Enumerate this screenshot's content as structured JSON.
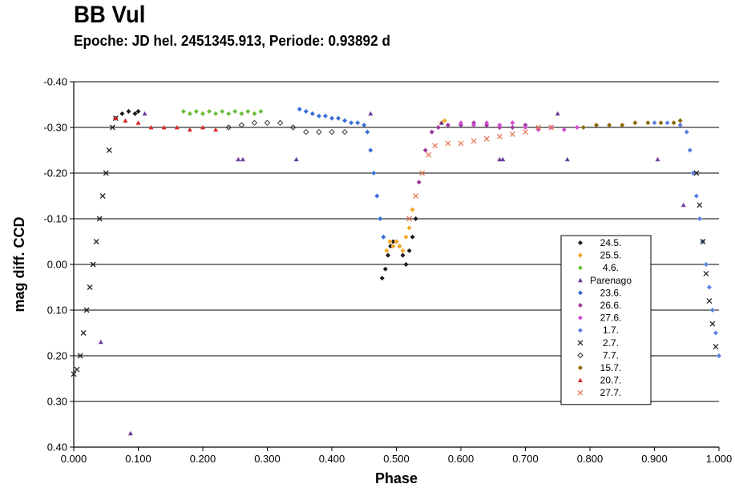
{
  "title": "BB Vul",
  "subtitle": "Epoche: JD hel. 2451345.913, Periode: 0.93892 d",
  "chart_data": {
    "type": "scatter",
    "title": "BB Vul",
    "subtitle": "Epoche: JD hel. 2451345.913, Periode: 0.93892 d",
    "xlabel": "Phase",
    "ylabel": "mag diff. CCD",
    "xlim": [
      0.0,
      1.0
    ],
    "ylim": [
      -0.4,
      0.4
    ],
    "y_inverted": true,
    "grid": "horizontal",
    "legend_position": "bottom-right",
    "x_ticks": [
      "0.000",
      "0.100",
      "0.200",
      "0.300",
      "0.400",
      "0.500",
      "0.600",
      "0.700",
      "0.800",
      "0.900",
      "1.000"
    ],
    "x_tick_values": [
      0,
      0.1,
      0.2,
      0.3,
      0.4,
      0.5,
      0.6,
      0.7,
      0.8,
      0.9,
      1.0
    ],
    "y_ticks": [
      "-0.40",
      "-0.30",
      "-0.20",
      "-0.10",
      "0.00",
      "0.10",
      "0.20",
      "0.30",
      "0.40"
    ],
    "y_tick_values": [
      -0.4,
      -0.3,
      -0.2,
      -0.1,
      0,
      0.1,
      0.2,
      0.3,
      0.4
    ],
    "series": [
      {
        "name": "24.5.",
        "color": "#1a1a1a",
        "marker": "diamond",
        "points": [
          [
            0.478,
            0.03
          ],
          [
            0.483,
            0.01
          ],
          [
            0.487,
            -0.02
          ],
          [
            0.491,
            -0.04
          ],
          [
            0.495,
            -0.05
          ],
          [
            0.5,
            -0.05
          ],
          [
            0.505,
            -0.04
          ],
          [
            0.51,
            -0.02
          ],
          [
            0.515,
            0.0
          ],
          [
            0.52,
            -0.03
          ],
          [
            0.525,
            -0.06
          ],
          [
            0.53,
            -0.1
          ],
          [
            0.065,
            -0.32
          ],
          [
            0.075,
            -0.33
          ],
          [
            0.085,
            -0.335
          ],
          [
            0.095,
            -0.33
          ],
          [
            0.1,
            -0.335
          ]
        ]
      },
      {
        "name": "25.5.",
        "color": "#f5a623",
        "marker": "diamond",
        "points": [
          [
            0.485,
            -0.03
          ],
          [
            0.49,
            -0.05
          ],
          [
            0.495,
            -0.04
          ],
          [
            0.5,
            -0.05
          ],
          [
            0.505,
            -0.04
          ],
          [
            0.51,
            -0.03
          ],
          [
            0.515,
            -0.06
          ],
          [
            0.52,
            -0.08
          ],
          [
            0.525,
            -0.12
          ],
          [
            0.57,
            -0.31
          ],
          [
            0.575,
            -0.315
          ]
        ]
      },
      {
        "name": "4.6.",
        "color": "#6cbf3b",
        "marker": "diamond",
        "points": [
          [
            0.17,
            -0.335
          ],
          [
            0.18,
            -0.33
          ],
          [
            0.19,
            -0.335
          ],
          [
            0.2,
            -0.33
          ],
          [
            0.21,
            -0.335
          ],
          [
            0.22,
            -0.33
          ],
          [
            0.23,
            -0.335
          ],
          [
            0.24,
            -0.33
          ],
          [
            0.25,
            -0.335
          ],
          [
            0.26,
            -0.33
          ],
          [
            0.27,
            -0.335
          ],
          [
            0.28,
            -0.33
          ],
          [
            0.29,
            -0.335
          ]
        ]
      },
      {
        "name": "Parenago",
        "color": "#6a3d9a",
        "marker": "triangle",
        "points": [
          [
            0.088,
            0.37
          ],
          [
            0.042,
            0.17
          ],
          [
            0.11,
            -0.33
          ],
          [
            0.255,
            -0.23
          ],
          [
            0.262,
            -0.23
          ],
          [
            0.345,
            -0.23
          ],
          [
            0.46,
            -0.33
          ],
          [
            0.66,
            -0.23
          ],
          [
            0.665,
            -0.23
          ],
          [
            0.75,
            -0.33
          ],
          [
            0.765,
            -0.23
          ],
          [
            0.905,
            -0.23
          ],
          [
            0.945,
            -0.13
          ],
          [
            0.57,
            -0.31
          ]
        ]
      },
      {
        "name": "23.6.",
        "color": "#3b6fd4",
        "marker": "diamond",
        "points": [
          [
            0.35,
            -0.34
          ],
          [
            0.36,
            -0.335
          ],
          [
            0.37,
            -0.33
          ],
          [
            0.38,
            -0.325
          ],
          [
            0.39,
            -0.325
          ],
          [
            0.4,
            -0.32
          ],
          [
            0.41,
            -0.32
          ],
          [
            0.42,
            -0.315
          ],
          [
            0.43,
            -0.31
          ],
          [
            0.44,
            -0.31
          ],
          [
            0.45,
            -0.305
          ],
          [
            0.455,
            -0.29
          ],
          [
            0.46,
            -0.25
          ],
          [
            0.465,
            -0.2
          ],
          [
            0.47,
            -0.15
          ],
          [
            0.475,
            -0.1
          ],
          [
            0.48,
            -0.06
          ]
        ]
      },
      {
        "name": "26.6.",
        "color": "#a0359e",
        "marker": "diamond",
        "points": [
          [
            0.535,
            -0.18
          ],
          [
            0.545,
            -0.25
          ],
          [
            0.555,
            -0.29
          ],
          [
            0.565,
            -0.3
          ],
          [
            0.58,
            -0.305
          ],
          [
            0.6,
            -0.305
          ],
          [
            0.62,
            -0.31
          ],
          [
            0.64,
            -0.305
          ],
          [
            0.66,
            -0.3
          ],
          [
            0.68,
            -0.3
          ],
          [
            0.7,
            -0.305
          ]
        ]
      },
      {
        "name": "27.6.",
        "color": "#d34fd1",
        "marker": "diamond",
        "points": [
          [
            0.6,
            -0.31
          ],
          [
            0.62,
            -0.305
          ],
          [
            0.64,
            -0.31
          ],
          [
            0.66,
            -0.305
          ],
          [
            0.68,
            -0.31
          ],
          [
            0.7,
            -0.3
          ],
          [
            0.72,
            -0.295
          ],
          [
            0.74,
            -0.3
          ],
          [
            0.76,
            -0.295
          ],
          [
            0.78,
            -0.3
          ]
        ]
      },
      {
        "name": "1.7.",
        "color": "#5a7fe0",
        "marker": "diamond",
        "points": [
          [
            0.9,
            -0.31
          ],
          [
            0.92,
            -0.31
          ],
          [
            0.94,
            -0.305
          ],
          [
            0.95,
            -0.29
          ],
          [
            0.955,
            -0.25
          ],
          [
            0.96,
            -0.2
          ],
          [
            0.965,
            -0.15
          ],
          [
            0.97,
            -0.1
          ],
          [
            0.975,
            -0.05
          ],
          [
            0.98,
            0.0
          ],
          [
            0.985,
            0.05
          ],
          [
            0.99,
            0.1
          ],
          [
            0.995,
            0.15
          ],
          [
            1.0,
            0.2
          ]
        ]
      },
      {
        "name": "2.7.",
        "color": "#222222",
        "marker": "x",
        "points": [
          [
            0.0,
            0.24
          ],
          [
            0.005,
            0.23
          ],
          [
            0.01,
            0.2
          ],
          [
            0.015,
            0.15
          ],
          [
            0.02,
            0.1
          ],
          [
            0.025,
            0.05
          ],
          [
            0.03,
            0.0
          ],
          [
            0.035,
            -0.05
          ],
          [
            0.04,
            -0.1
          ],
          [
            0.045,
            -0.15
          ],
          [
            0.05,
            -0.2
          ],
          [
            0.055,
            -0.25
          ],
          [
            0.06,
            -0.3
          ],
          [
            0.065,
            -0.32
          ],
          [
            0.965,
            -0.2
          ],
          [
            0.97,
            -0.13
          ],
          [
            0.975,
            -0.05
          ],
          [
            0.98,
            0.02
          ],
          [
            0.985,
            0.08
          ],
          [
            0.99,
            0.13
          ],
          [
            0.995,
            0.18
          ]
        ]
      },
      {
        "name": "7.7.",
        "color": "#333333",
        "marker": "diamond-open",
        "points": [
          [
            0.24,
            -0.3
          ],
          [
            0.26,
            -0.305
          ],
          [
            0.28,
            -0.31
          ],
          [
            0.3,
            -0.31
          ],
          [
            0.32,
            -0.31
          ],
          [
            0.34,
            -0.3
          ],
          [
            0.36,
            -0.29
          ],
          [
            0.38,
            -0.29
          ],
          [
            0.4,
            -0.29
          ],
          [
            0.42,
            -0.29
          ]
        ]
      },
      {
        "name": "15.7.",
        "color": "#8b6a00",
        "marker": "diamond",
        "points": [
          [
            0.79,
            -0.3
          ],
          [
            0.81,
            -0.305
          ],
          [
            0.83,
            -0.305
          ],
          [
            0.85,
            -0.305
          ],
          [
            0.87,
            -0.31
          ],
          [
            0.89,
            -0.31
          ],
          [
            0.91,
            -0.31
          ],
          [
            0.93,
            -0.31
          ],
          [
            0.94,
            -0.315
          ]
        ]
      },
      {
        "name": "20.7.",
        "color": "#d62728",
        "marker": "triangle",
        "points": [
          [
            0.065,
            -0.32
          ],
          [
            0.08,
            -0.315
          ],
          [
            0.1,
            -0.31
          ],
          [
            0.12,
            -0.3
          ],
          [
            0.14,
            -0.3
          ],
          [
            0.16,
            -0.3
          ],
          [
            0.18,
            -0.295
          ],
          [
            0.2,
            -0.3
          ],
          [
            0.22,
            -0.295
          ]
        ]
      },
      {
        "name": "27.7.",
        "color": "#e8785a",
        "marker": "x",
        "points": [
          [
            0.52,
            -0.1
          ],
          [
            0.53,
            -0.15
          ],
          [
            0.54,
            -0.2
          ],
          [
            0.55,
            -0.24
          ],
          [
            0.56,
            -0.26
          ],
          [
            0.58,
            -0.265
          ],
          [
            0.6,
            -0.265
          ],
          [
            0.62,
            -0.27
          ],
          [
            0.64,
            -0.275
          ],
          [
            0.66,
            -0.28
          ],
          [
            0.68,
            -0.285
          ],
          [
            0.7,
            -0.29
          ],
          [
            0.72,
            -0.3
          ],
          [
            0.74,
            -0.3
          ]
        ]
      }
    ]
  }
}
